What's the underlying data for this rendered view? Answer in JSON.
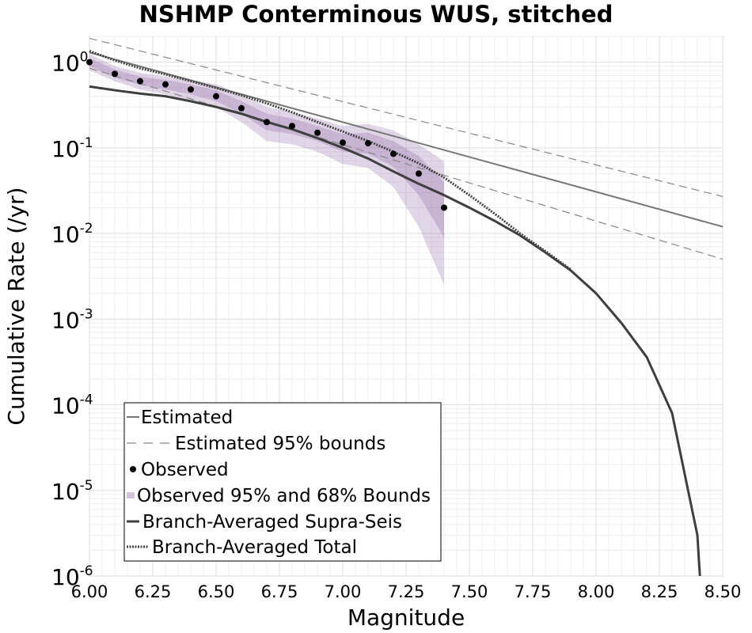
{
  "chart_data": {
    "type": "line",
    "title": "NSHMP Conterminous WUS, stitched",
    "xlabel": "Magnitude",
    "ylabel": "Cumulative Rate (/yr)",
    "xlim": [
      6.0,
      8.5
    ],
    "ylim": [
      1e-06,
      2
    ],
    "yscale": "log",
    "grid": true,
    "legend_position": "bottom-left",
    "x_ticks": [
      "6.00",
      "6.25",
      "6.50",
      "6.75",
      "7.00",
      "7.25",
      "7.50",
      "7.75",
      "8.00",
      "8.25",
      "8.50"
    ],
    "y_ticks": [
      {
        "base": "10",
        "exp": "0"
      },
      {
        "base": "10",
        "exp": "-1"
      },
      {
        "base": "10",
        "exp": "-2"
      },
      {
        "base": "10",
        "exp": "-3"
      },
      {
        "base": "10",
        "exp": "-4"
      },
      {
        "base": "10",
        "exp": "-5"
      },
      {
        "base": "10",
        "exp": "-6"
      }
    ],
    "legend": [
      {
        "label": "Estimated",
        "style": "solid-gray"
      },
      {
        "label": "Estimated 95% bounds",
        "style": "dashed-gray"
      },
      {
        "label": "Observed",
        "style": "dot"
      },
      {
        "label": "Observed 95% and 68% Bounds",
        "style": "band"
      },
      {
        "label": "Branch-Averaged Supra-Seis",
        "style": "solid-dark"
      },
      {
        "label": "Branch-Averaged Total",
        "style": "dotted-dark"
      }
    ],
    "series": [
      {
        "name": "Estimated",
        "x": [
          6.0,
          8.5
        ],
        "y": [
          1.3,
          0.012
        ]
      },
      {
        "name": "Estimated 95% bounds",
        "x": [
          6.0,
          8.5
        ],
        "y": [
          1.9,
          0.027
        ]
      },
      {
        "name": "Estimated 95% bounds",
        "x": [
          6.0,
          8.5
        ],
        "y": [
          0.85,
          0.005
        ]
      },
      {
        "name": "Observed",
        "x": [
          6.0,
          6.1,
          6.2,
          6.3,
          6.4,
          6.5,
          6.6,
          6.7,
          6.8,
          6.9,
          7.0,
          7.1,
          7.2,
          7.3,
          7.4
        ],
        "y": [
          1.0,
          0.73,
          0.6,
          0.55,
          0.48,
          0.4,
          0.29,
          0.2,
          0.18,
          0.15,
          0.115,
          0.113,
          0.085,
          0.05,
          0.02
        ]
      },
      {
        "name": "Observed 95% and 68% Bounds",
        "x": [
          6.0,
          6.1,
          6.2,
          6.3,
          6.4,
          6.5,
          6.6,
          6.7,
          6.8,
          6.9,
          7.0,
          7.1,
          7.2,
          7.3,
          7.4
        ],
        "lower95": [
          0.8,
          0.6,
          0.48,
          0.42,
          0.36,
          0.3,
          0.2,
          0.12,
          0.11,
          0.09,
          0.065,
          0.058,
          0.035,
          0.012,
          0.0025
        ],
        "upper95": [
          1.25,
          0.9,
          0.75,
          0.68,
          0.62,
          0.55,
          0.42,
          0.3,
          0.26,
          0.22,
          0.18,
          0.19,
          0.16,
          0.11,
          0.07
        ],
        "lower68": [
          0.9,
          0.66,
          0.54,
          0.48,
          0.42,
          0.35,
          0.25,
          0.16,
          0.145,
          0.12,
          0.09,
          0.085,
          0.06,
          0.028,
          0.009
        ],
        "upper68": [
          1.12,
          0.82,
          0.68,
          0.62,
          0.55,
          0.47,
          0.35,
          0.25,
          0.22,
          0.18,
          0.145,
          0.15,
          0.12,
          0.08,
          0.04
        ]
      },
      {
        "name": "Branch-Averaged Supra-Seis",
        "x": [
          6.0,
          6.1,
          6.2,
          6.3,
          6.4,
          6.5,
          6.6,
          6.7,
          6.8,
          6.9,
          7.0,
          7.1,
          7.2,
          7.3,
          7.4,
          7.5,
          7.6,
          7.7,
          7.8,
          7.9,
          8.0,
          8.1,
          8.2,
          8.3,
          8.4,
          8.41
        ],
        "y": [
          0.52,
          0.47,
          0.43,
          0.4,
          0.35,
          0.3,
          0.25,
          0.2,
          0.165,
          0.13,
          0.1,
          0.075,
          0.053,
          0.038,
          0.028,
          0.02,
          0.014,
          0.0095,
          0.006,
          0.0037,
          0.002,
          0.0009,
          0.00036,
          8e-05,
          3e-06,
          1e-06
        ]
      },
      {
        "name": "Branch-Averaged Total",
        "x": [
          6.0,
          6.1,
          6.2,
          6.3,
          6.4,
          6.5,
          6.6,
          6.7,
          6.8,
          6.9,
          7.0,
          7.1,
          7.2,
          7.3,
          7.4,
          7.5,
          7.6,
          7.7,
          7.8,
          7.9
        ],
        "y": [
          1.35,
          1.05,
          0.85,
          0.72,
          0.6,
          0.5,
          0.41,
          0.33,
          0.26,
          0.2,
          0.155,
          0.12,
          0.09,
          0.066,
          0.045,
          0.028,
          0.017,
          0.01,
          0.0062,
          0.0038
        ]
      }
    ]
  }
}
